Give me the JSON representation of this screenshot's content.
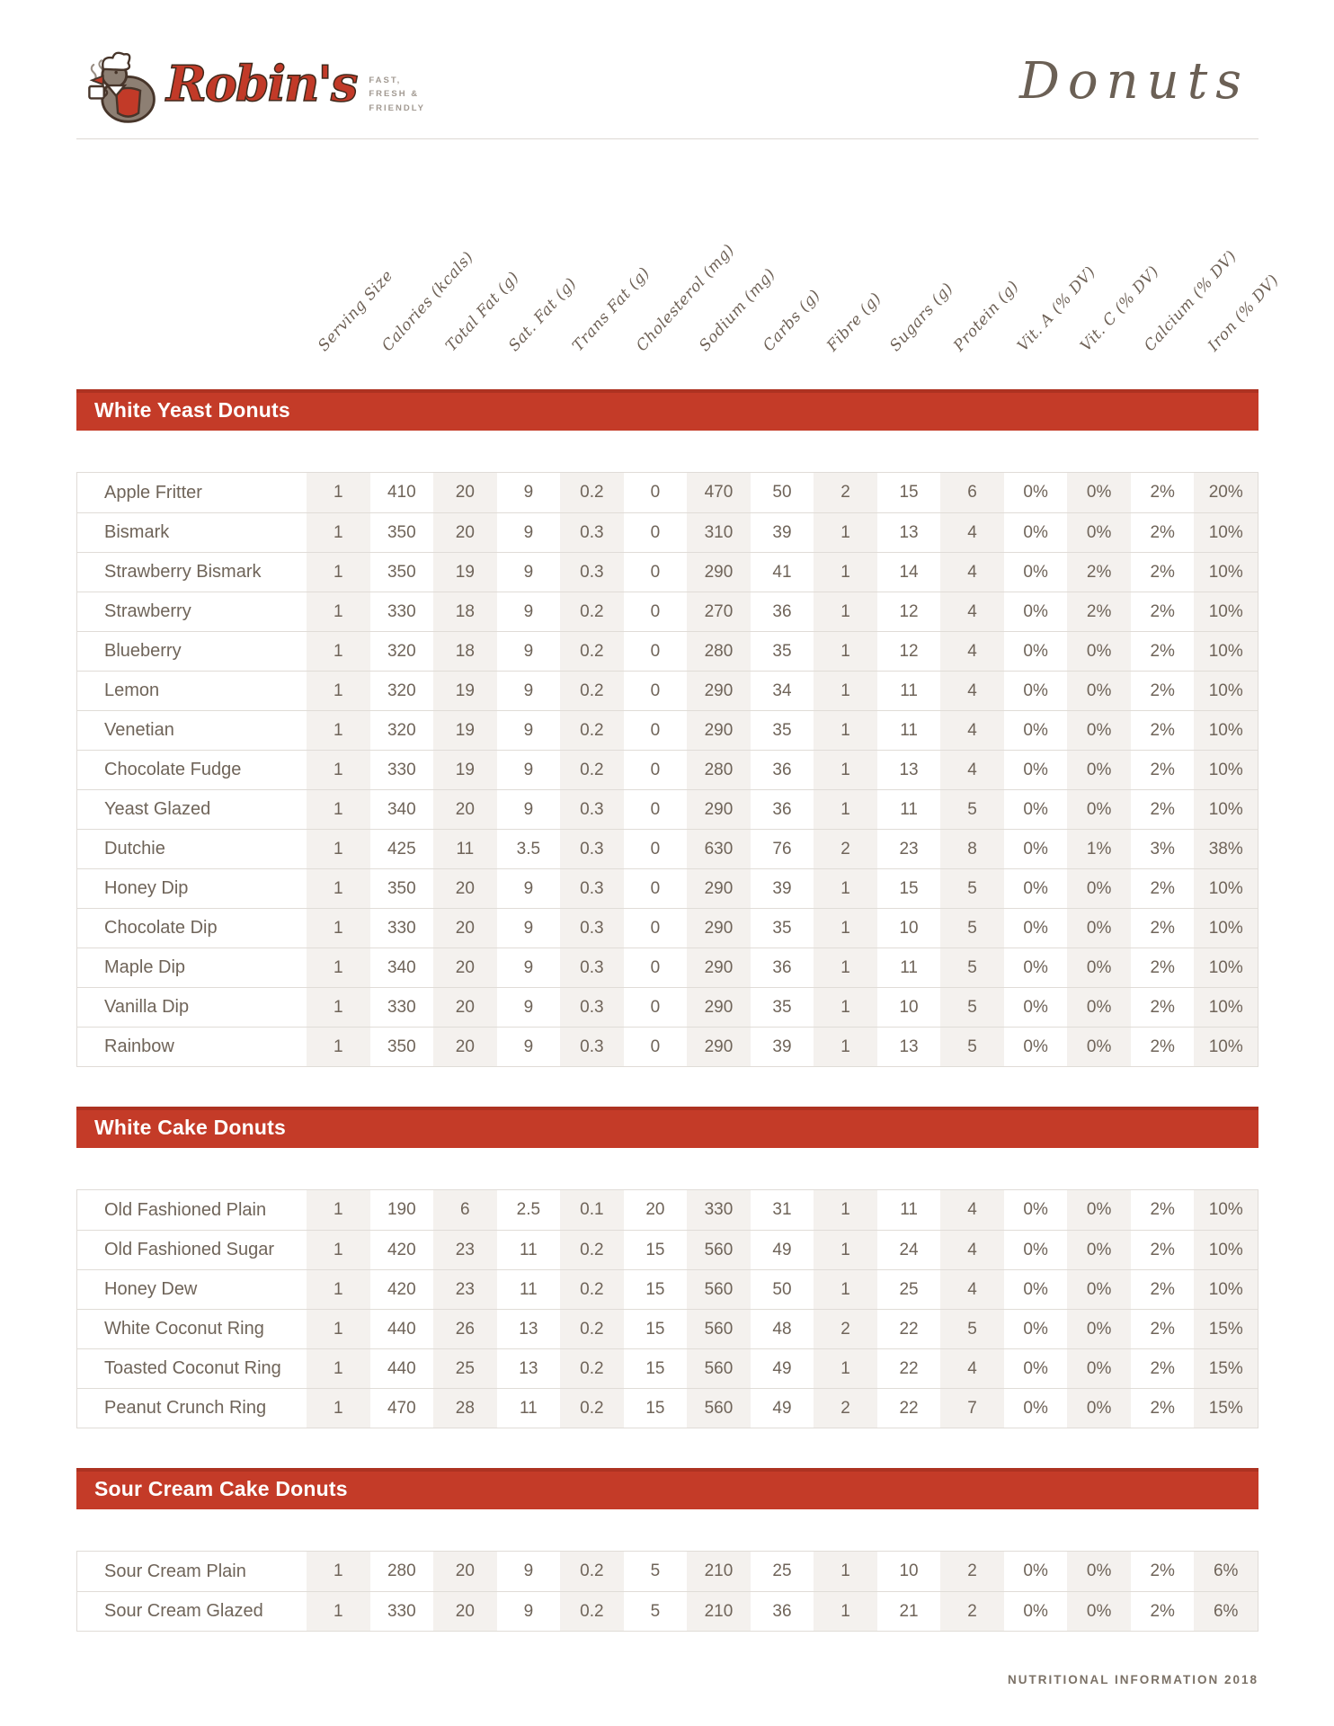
{
  "brand": {
    "name": "Robin's",
    "tagline_lines": [
      "FAST,",
      "FRESH &",
      "FRIENDLY"
    ],
    "page_title": "Donuts"
  },
  "columns": [
    "Serving Size",
    "Calories (kcals)",
    "Total Fat (g)",
    "Sat. Fat (g)",
    "Trans Fat (g)",
    "Cholesterol (mg)",
    "Sodium (mg)",
    "Carbs (g)",
    "Fibre (g)",
    "Sugars (g)",
    "Protein (g)",
    "Vit. A (% DV)",
    "Vit. C (% DV)",
    "Calcium (% DV)",
    "Iron (% DV)"
  ],
  "sections": [
    {
      "title": "White Yeast Donuts",
      "rows": [
        {
          "name": "Apple Fritter",
          "values": [
            "1",
            "410",
            "20",
            "9",
            "0.2",
            "0",
            "470",
            "50",
            "2",
            "15",
            "6",
            "0%",
            "0%",
            "2%",
            "20%"
          ]
        },
        {
          "name": "Bismark",
          "values": [
            "1",
            "350",
            "20",
            "9",
            "0.3",
            "0",
            "310",
            "39",
            "1",
            "13",
            "4",
            "0%",
            "0%",
            "2%",
            "10%"
          ]
        },
        {
          "name": "Strawberry Bismark",
          "values": [
            "1",
            "350",
            "19",
            "9",
            "0.3",
            "0",
            "290",
            "41",
            "1",
            "14",
            "4",
            "0%",
            "2%",
            "2%",
            "10%"
          ]
        },
        {
          "name": "Strawberry",
          "values": [
            "1",
            "330",
            "18",
            "9",
            "0.2",
            "0",
            "270",
            "36",
            "1",
            "12",
            "4",
            "0%",
            "2%",
            "2%",
            "10%"
          ]
        },
        {
          "name": "Blueberry",
          "values": [
            "1",
            "320",
            "18",
            "9",
            "0.2",
            "0",
            "280",
            "35",
            "1",
            "12",
            "4",
            "0%",
            "0%",
            "2%",
            "10%"
          ]
        },
        {
          "name": "Lemon",
          "values": [
            "1",
            "320",
            "19",
            "9",
            "0.2",
            "0",
            "290",
            "34",
            "1",
            "11",
            "4",
            "0%",
            "0%",
            "2%",
            "10%"
          ]
        },
        {
          "name": "Venetian",
          "values": [
            "1",
            "320",
            "19",
            "9",
            "0.2",
            "0",
            "290",
            "35",
            "1",
            "11",
            "4",
            "0%",
            "0%",
            "2%",
            "10%"
          ]
        },
        {
          "name": "Chocolate Fudge",
          "values": [
            "1",
            "330",
            "19",
            "9",
            "0.2",
            "0",
            "280",
            "36",
            "1",
            "13",
            "4",
            "0%",
            "0%",
            "2%",
            "10%"
          ]
        },
        {
          "name": "Yeast Glazed",
          "values": [
            "1",
            "340",
            "20",
            "9",
            "0.3",
            "0",
            "290",
            "36",
            "1",
            "11",
            "5",
            "0%",
            "0%",
            "2%",
            "10%"
          ]
        },
        {
          "name": "Dutchie",
          "values": [
            "1",
            "425",
            "11",
            "3.5",
            "0.3",
            "0",
            "630",
            "76",
            "2",
            "23",
            "8",
            "0%",
            "1%",
            "3%",
            "38%"
          ]
        },
        {
          "name": "Honey Dip",
          "values": [
            "1",
            "350",
            "20",
            "9",
            "0.3",
            "0",
            "290",
            "39",
            "1",
            "15",
            "5",
            "0%",
            "0%",
            "2%",
            "10%"
          ]
        },
        {
          "name": "Chocolate Dip",
          "values": [
            "1",
            "330",
            "20",
            "9",
            "0.3",
            "0",
            "290",
            "35",
            "1",
            "10",
            "5",
            "0%",
            "0%",
            "2%",
            "10%"
          ]
        },
        {
          "name": "Maple Dip",
          "values": [
            "1",
            "340",
            "20",
            "9",
            "0.3",
            "0",
            "290",
            "36",
            "1",
            "11",
            "5",
            "0%",
            "0%",
            "2%",
            "10%"
          ]
        },
        {
          "name": "Vanilla Dip",
          "values": [
            "1",
            "330",
            "20",
            "9",
            "0.3",
            "0",
            "290",
            "35",
            "1",
            "10",
            "5",
            "0%",
            "0%",
            "2%",
            "10%"
          ]
        },
        {
          "name": "Rainbow",
          "values": [
            "1",
            "350",
            "20",
            "9",
            "0.3",
            "0",
            "290",
            "39",
            "1",
            "13",
            "5",
            "0%",
            "0%",
            "2%",
            "10%"
          ]
        }
      ]
    },
    {
      "title": "White Cake Donuts",
      "rows": [
        {
          "name": "Old Fashioned Plain",
          "values": [
            "1",
            "190",
            "6",
            "2.5",
            "0.1",
            "20",
            "330",
            "31",
            "1",
            "11",
            "4",
            "0%",
            "0%",
            "2%",
            "10%"
          ]
        },
        {
          "name": "Old Fashioned Sugar",
          "values": [
            "1",
            "420",
            "23",
            "11",
            "0.2",
            "15",
            "560",
            "49",
            "1",
            "24",
            "4",
            "0%",
            "0%",
            "2%",
            "10%"
          ]
        },
        {
          "name": "Honey Dew",
          "values": [
            "1",
            "420",
            "23",
            "11",
            "0.2",
            "15",
            "560",
            "50",
            "1",
            "25",
            "4",
            "0%",
            "0%",
            "2%",
            "10%"
          ]
        },
        {
          "name": "White Coconut Ring",
          "values": [
            "1",
            "440",
            "26",
            "13",
            "0.2",
            "15",
            "560",
            "48",
            "2",
            "22",
            "5",
            "0%",
            "0%",
            "2%",
            "15%"
          ]
        },
        {
          "name": "Toasted Coconut Ring",
          "values": [
            "1",
            "440",
            "25",
            "13",
            "0.2",
            "15",
            "560",
            "49",
            "1",
            "22",
            "4",
            "0%",
            "0%",
            "2%",
            "15%"
          ]
        },
        {
          "name": "Peanut Crunch Ring",
          "values": [
            "1",
            "470",
            "28",
            "11",
            "0.2",
            "15",
            "560",
            "49",
            "2",
            "22",
            "7",
            "0%",
            "0%",
            "2%",
            "15%"
          ]
        }
      ]
    },
    {
      "title": "Sour Cream Cake Donuts",
      "rows": [
        {
          "name": "Sour Cream Plain",
          "values": [
            "1",
            "280",
            "20",
            "9",
            "0.2",
            "5",
            "210",
            "25",
            "1",
            "10",
            "2",
            "0%",
            "0%",
            "2%",
            "6%"
          ]
        },
        {
          "name": "Sour Cream Glazed",
          "values": [
            "1",
            "330",
            "20",
            "9",
            "0.2",
            "5",
            "210",
            "36",
            "1",
            "21",
            "2",
            "0%",
            "0%",
            "2%",
            "6%"
          ]
        }
      ]
    }
  ],
  "footer": {
    "note": "NUTRITIONAL INFORMATION 2018"
  },
  "colors": {
    "accent": "#c43b28",
    "text": "#6f6459",
    "column_shade": "#f4f1ee",
    "row_line": "#e0dcd7"
  }
}
